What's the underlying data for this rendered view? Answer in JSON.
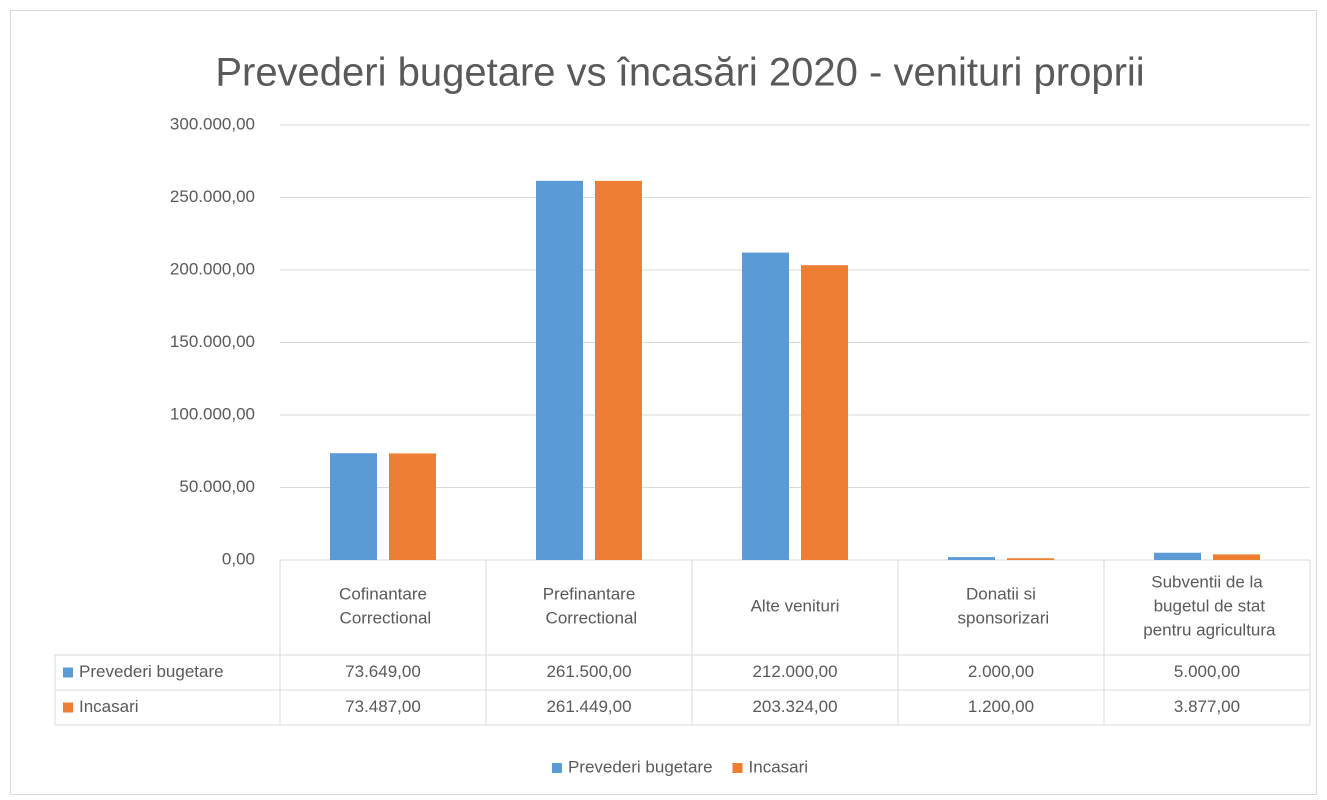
{
  "chart_data": {
    "type": "bar",
    "title": "Prevederi bugetare vs încasări 2020 - venituri proprii",
    "categories": [
      "Cofinantare Correctional",
      "Prefinantare Correctional",
      "Alte venituri",
      "Donatii si sponsorizari",
      "Subventii de la bugetul de stat pentru agricultura"
    ],
    "series": [
      {
        "name": "Prevederi bugetare",
        "color": "#5b9bd5",
        "values": [
          73649,
          261500,
          212000,
          2000,
          5000
        ],
        "value_labels": [
          "73.649,00",
          "261.500,00",
          "212.000,00",
          "2.000,00",
          "5.000,00"
        ]
      },
      {
        "name": "Incasari",
        "color": "#ed7d31",
        "values": [
          73487,
          261449,
          203324,
          1200,
          3877
        ],
        "value_labels": [
          "73.487,00",
          "261.449,00",
          "203.324,00",
          "1.200,00",
          "3.877,00"
        ]
      }
    ],
    "ylim": [
      0,
      300000
    ],
    "yticks": [
      {
        "value": 0,
        "label": "0,00"
      },
      {
        "value": 50000,
        "label": "50.000,00"
      },
      {
        "value": 100000,
        "label": "100.000,00"
      },
      {
        "value": 150000,
        "label": "150.000,00"
      },
      {
        "value": 200000,
        "label": "200.000,00"
      },
      {
        "value": 250000,
        "label": "250.000,00"
      },
      {
        "value": 300000,
        "label": "300.000,00"
      }
    ],
    "grid": true,
    "legend": "bottom",
    "data_table": true
  }
}
